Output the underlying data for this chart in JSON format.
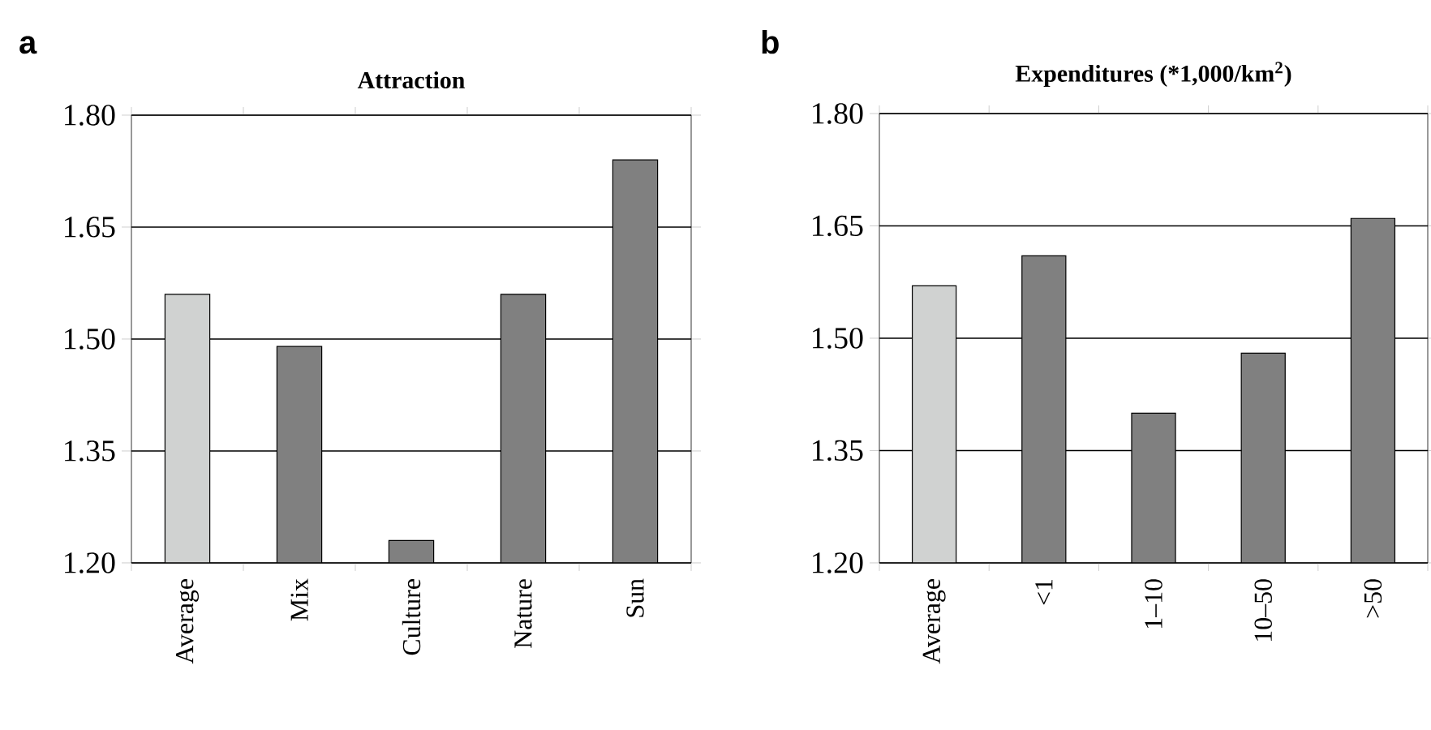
{
  "chart_data": [
    {
      "type": "bar",
      "title": "Attraction",
      "annotations": [
        "a"
      ],
      "categories": [
        "Average",
        "Mix",
        "Culture",
        "Nature",
        "Sun"
      ],
      "values": [
        1.56,
        1.49,
        1.23,
        1.56,
        1.74
      ],
      "colors": [
        "#d0d2d1",
        "#808080",
        "#808080",
        "#808080",
        "#808080"
      ],
      "ylim": [
        1.2,
        1.8
      ],
      "yticks": [
        {
          "value": 1.2,
          "label": "1.20"
        },
        {
          "value": 1.35,
          "label": "1.35"
        },
        {
          "value": 1.5,
          "label": "1.50"
        },
        {
          "value": 1.65,
          "label": "1.65"
        },
        {
          "value": 1.8,
          "label": "1.80"
        }
      ],
      "grid": "y"
    },
    {
      "type": "bar",
      "title": "Expenditures (*1,000/km$^{2}$)",
      "annotations": [
        "b"
      ],
      "categories": [
        "Average",
        "<1",
        "1–10",
        "10–50",
        ">50"
      ],
      "values": [
        1.57,
        1.61,
        1.4,
        1.48,
        1.66
      ],
      "colors": [
        "#d0d2d1",
        "#808080",
        "#808080",
        "#808080",
        "#808080"
      ],
      "ylim": [
        1.2,
        1.8
      ],
      "yticks": [
        {
          "value": 1.2,
          "label": "1.20"
        },
        {
          "value": 1.35,
          "label": "1.35"
        },
        {
          "value": 1.5,
          "label": "1.50"
        },
        {
          "value": 1.65,
          "label": "1.65"
        },
        {
          "value": 1.8,
          "label": "1.80"
        }
      ],
      "grid": "y"
    }
  ]
}
